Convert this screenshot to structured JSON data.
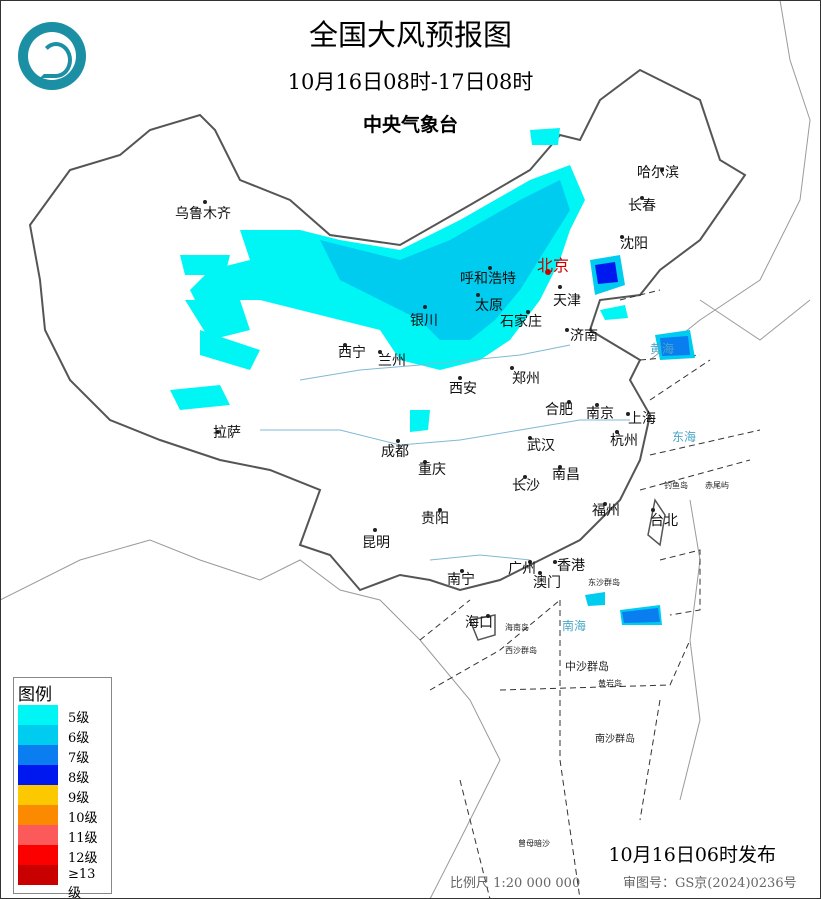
{
  "header": {
    "title": "全国大风预报图",
    "valid_period": "10月16日08时-17日08时",
    "issuer": "中央气象台"
  },
  "logo": {
    "icon": "cma-logo-icon",
    "color": "#1b8fa3"
  },
  "cities": [
    {
      "name": "乌鲁木齐"
    },
    {
      "name": "拉萨"
    },
    {
      "name": "西宁"
    },
    {
      "name": "兰州"
    },
    {
      "name": "银川"
    },
    {
      "name": "呼和浩特"
    },
    {
      "name": "太原"
    },
    {
      "name": "石家庄"
    },
    {
      "name": "北京",
      "capital": true
    },
    {
      "name": "天津"
    },
    {
      "name": "沈阳"
    },
    {
      "name": "长春"
    },
    {
      "name": "哈尔滨"
    },
    {
      "name": "济南"
    },
    {
      "name": "郑州"
    },
    {
      "name": "西安"
    },
    {
      "name": "成都"
    },
    {
      "name": "重庆"
    },
    {
      "name": "贵阳"
    },
    {
      "name": "昆明"
    },
    {
      "name": "南宁"
    },
    {
      "name": "广州"
    },
    {
      "name": "香港"
    },
    {
      "name": "澳门"
    },
    {
      "name": "海口"
    },
    {
      "name": "长沙"
    },
    {
      "name": "南昌"
    },
    {
      "name": "武汉"
    },
    {
      "name": "福州"
    },
    {
      "name": "台北"
    },
    {
      "name": "合肥"
    },
    {
      "name": "南京"
    },
    {
      "name": "上海"
    },
    {
      "name": "杭州"
    }
  ],
  "sea_labels": [
    "东海",
    "黄海",
    "南海",
    "钓鱼岛",
    "赤尾屿",
    "东沙群岛",
    "海南岛",
    "西沙群岛",
    "中沙群岛",
    "黄岩岛",
    "南沙群岛",
    "曾母暗沙"
  ],
  "legend": {
    "title": "图例",
    "items": [
      {
        "label": "5级",
        "color": "#00f5f5"
      },
      {
        "label": "6级",
        "color": "#00ccf0"
      },
      {
        "label": "7级",
        "color": "#0a7ef0"
      },
      {
        "label": "8级",
        "color": "#0018f0"
      },
      {
        "label": "9级",
        "color": "#fcc800"
      },
      {
        "label": "10级",
        "color": "#fc8a00"
      },
      {
        "label": "11级",
        "color": "#fc5a5a"
      },
      {
        "label": "12级",
        "color": "#fc0000"
      },
      {
        "label": "≥13级",
        "color": "#c80000"
      }
    ]
  },
  "footer": {
    "issued": "10月16日06时发布",
    "scale": "比例尺 1:20 000 000",
    "approval": "审图号：GS京(2024)0236号"
  }
}
